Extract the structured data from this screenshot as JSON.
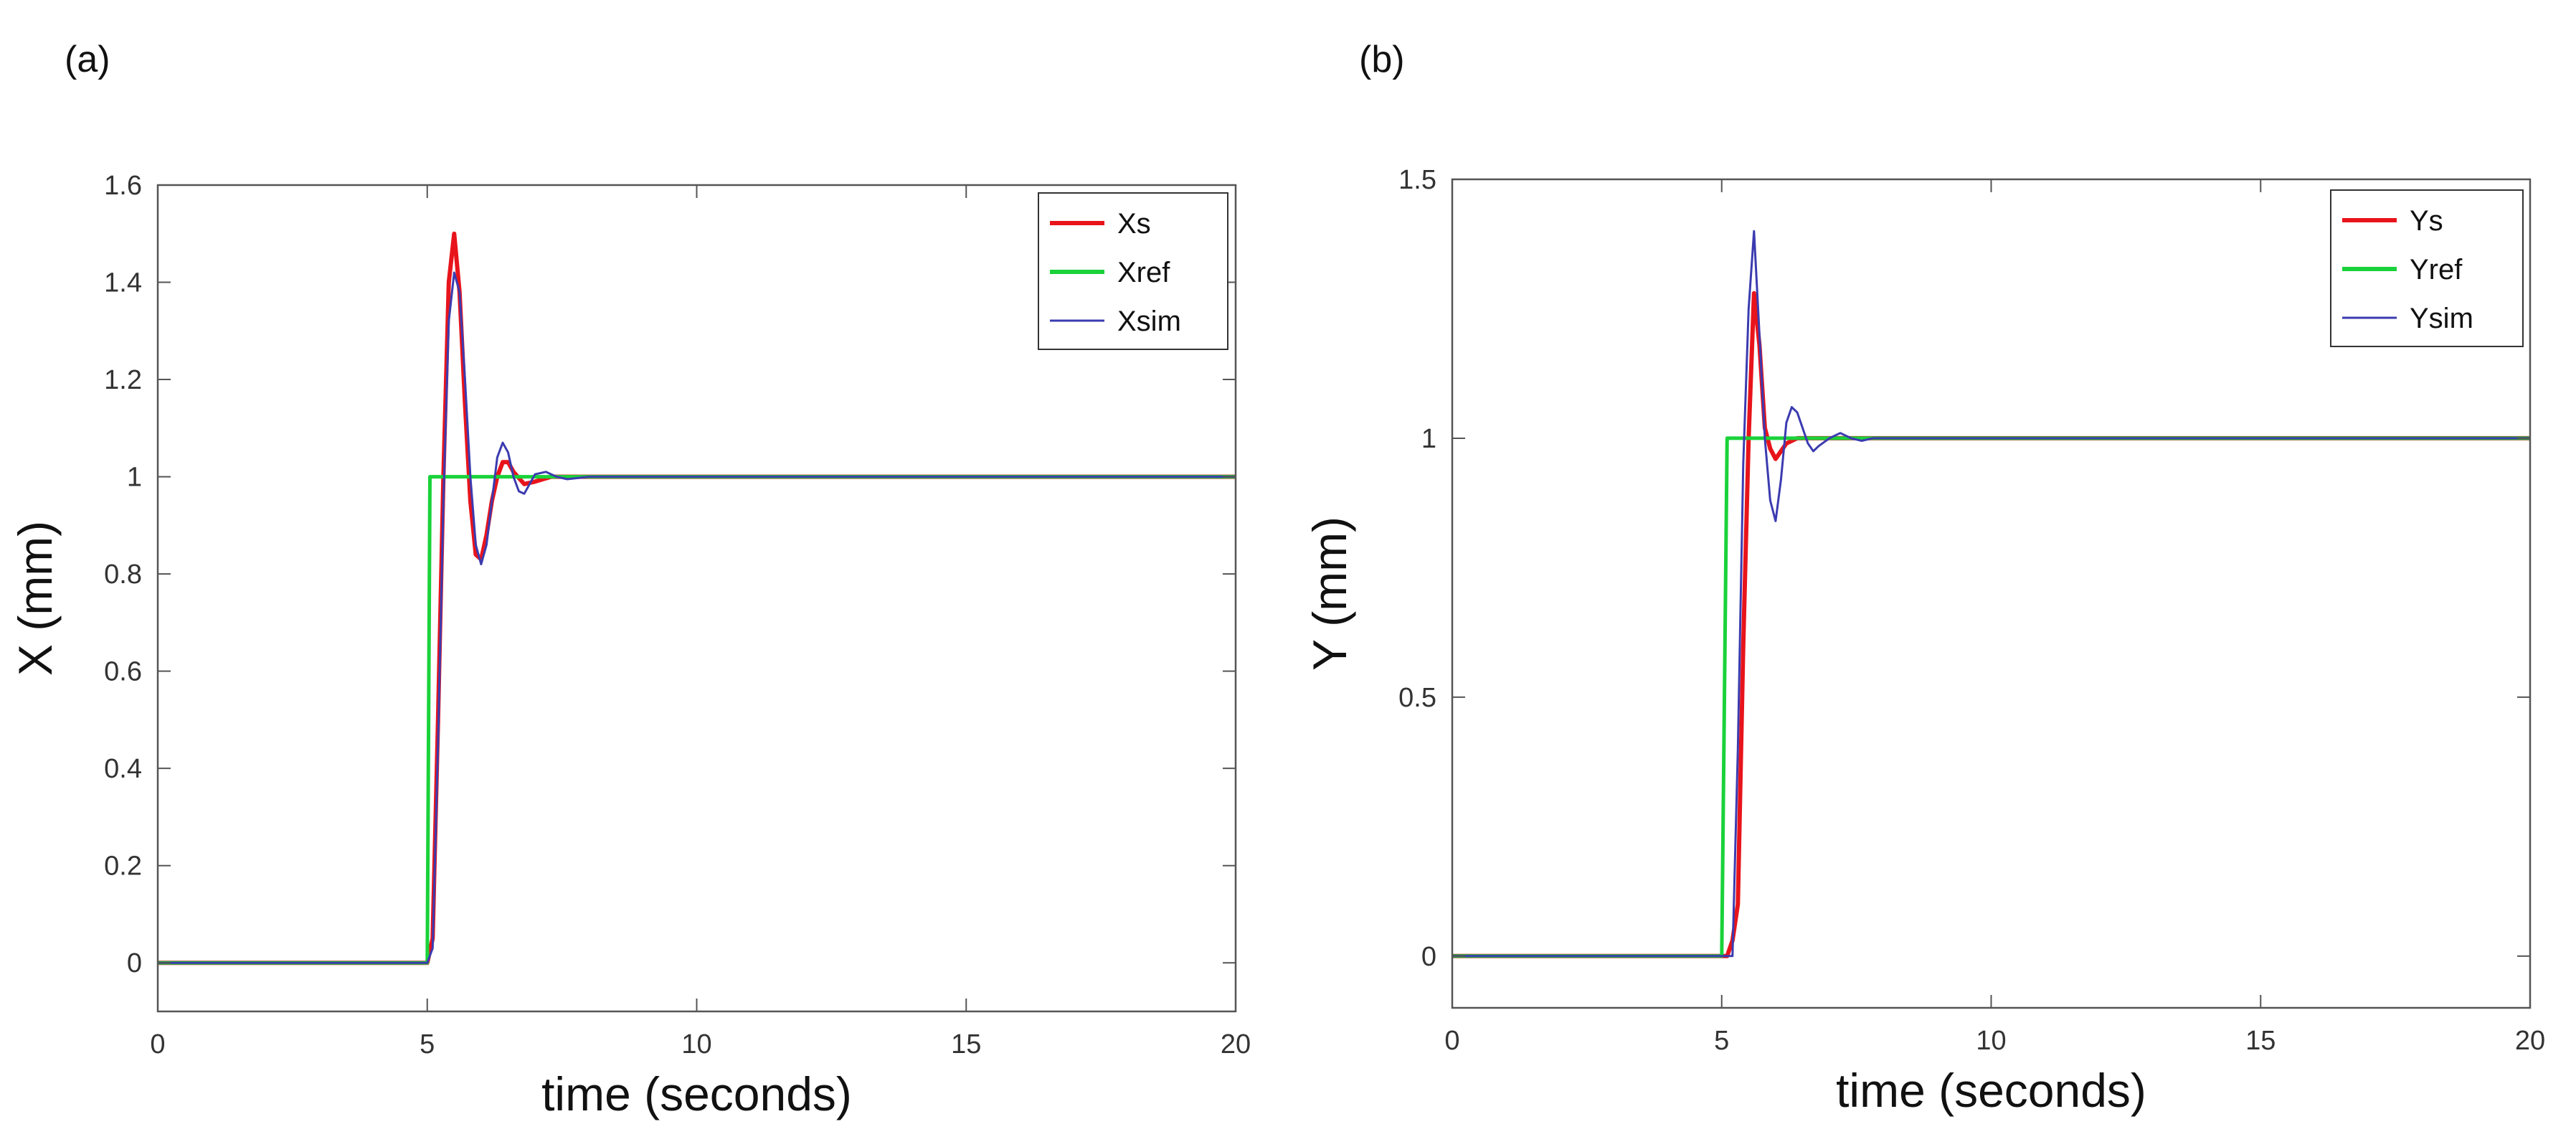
{
  "chart_data": [
    {
      "panel_label": "(a)",
      "type": "line",
      "xlabel": "time (seconds)",
      "ylabel": "X (mm)",
      "xlim": [
        0,
        20
      ],
      "ylim": [
        -0.1,
        1.6
      ],
      "xticks": [
        0,
        5,
        10,
        15,
        20
      ],
      "yticks": [
        0,
        0.2,
        0.4,
        0.6,
        0.8,
        1,
        1.2,
        1.4,
        1.6
      ],
      "ytick_labels": [
        "0",
        "0.2",
        "0.4",
        "0.6",
        "0.8",
        "1",
        "1.2",
        "1.4",
        "1.6"
      ],
      "grid": false,
      "legend_position": "top-right",
      "series": [
        {
          "name": "Xs",
          "color": "#e8141b",
          "x": [
            0,
            5.0,
            5.1,
            5.2,
            5.3,
            5.4,
            5.5,
            5.6,
            5.7,
            5.8,
            5.9,
            6.0,
            6.1,
            6.2,
            6.3,
            6.4,
            6.5,
            6.6,
            6.8,
            7.0,
            7.3,
            7.6,
            8.0,
            20
          ],
          "y": [
            0,
            0,
            0.05,
            0.5,
            1.0,
            1.4,
            1.5,
            1.38,
            1.15,
            0.95,
            0.84,
            0.83,
            0.88,
            0.95,
            1.0,
            1.03,
            1.03,
            1.01,
            0.985,
            0.99,
            1.0,
            1.0,
            1.0,
            1.0
          ]
        },
        {
          "name": "Xref",
          "color": "#1ad23a",
          "x": [
            0,
            5.0,
            5.05,
            20
          ],
          "y": [
            0,
            0,
            1,
            1
          ]
        },
        {
          "name": "Xsim",
          "color": "#3b3bb0",
          "x": [
            0,
            5.0,
            5.1,
            5.2,
            5.3,
            5.4,
            5.5,
            5.6,
            5.7,
            5.8,
            5.9,
            6.0,
            6.1,
            6.2,
            6.3,
            6.4,
            6.5,
            6.6,
            6.7,
            6.8,
            6.9,
            7.0,
            7.2,
            7.4,
            7.6,
            8.0,
            20
          ],
          "y": [
            0,
            0,
            0.03,
            0.45,
            0.95,
            1.32,
            1.42,
            1.38,
            1.2,
            1.0,
            0.86,
            0.82,
            0.86,
            0.95,
            1.04,
            1.07,
            1.05,
            1.0,
            0.97,
            0.965,
            0.985,
            1.005,
            1.01,
            1.0,
            0.995,
            1.0,
            1.0
          ]
        }
      ]
    },
    {
      "panel_label": "(b)",
      "type": "line",
      "xlabel": "time (seconds)",
      "ylabel": "Y (mm)",
      "xlim": [
        0,
        20
      ],
      "ylim": [
        -0.1,
        1.5
      ],
      "xticks": [
        0,
        5,
        10,
        15,
        20
      ],
      "yticks": [
        0,
        0.5,
        1,
        1.5
      ],
      "ytick_labels": [
        "0",
        "0.5",
        "1",
        "1.5"
      ],
      "grid": false,
      "legend_position": "top-right",
      "series": [
        {
          "name": "Ys",
          "color": "#e8141b",
          "x": [
            0,
            5.1,
            5.2,
            5.3,
            5.4,
            5.5,
            5.6,
            5.7,
            5.8,
            5.9,
            6.0,
            6.1,
            6.2,
            6.4,
            6.6,
            7.0,
            7.5,
            8.0,
            20
          ],
          "y": [
            0,
            0,
            0.03,
            0.1,
            0.6,
            1.0,
            1.28,
            1.18,
            1.02,
            0.98,
            0.96,
            0.975,
            0.99,
            1.0,
            1.0,
            1.0,
            1.0,
            1.0,
            1.0
          ]
        },
        {
          "name": "Yref",
          "color": "#1ad23a",
          "x": [
            0,
            5.0,
            5.1,
            20
          ],
          "y": [
            0,
            0,
            1,
            1
          ]
        },
        {
          "name": "Ysim",
          "color": "#3b3bb0",
          "x": [
            0,
            5.2,
            5.3,
            5.4,
            5.5,
            5.6,
            5.7,
            5.8,
            5.9,
            6.0,
            6.1,
            6.2,
            6.3,
            6.4,
            6.5,
            6.6,
            6.7,
            6.8,
            7.0,
            7.2,
            7.4,
            7.6,
            7.8,
            8.0,
            20
          ],
          "y": [
            0,
            0,
            0.4,
            0.95,
            1.25,
            1.4,
            1.2,
            1.0,
            0.88,
            0.84,
            0.92,
            1.03,
            1.06,
            1.05,
            1.02,
            0.99,
            0.975,
            0.985,
            1.0,
            1.01,
            1.0,
            0.995,
            1.0,
            1.0,
            1.0
          ]
        }
      ]
    }
  ]
}
